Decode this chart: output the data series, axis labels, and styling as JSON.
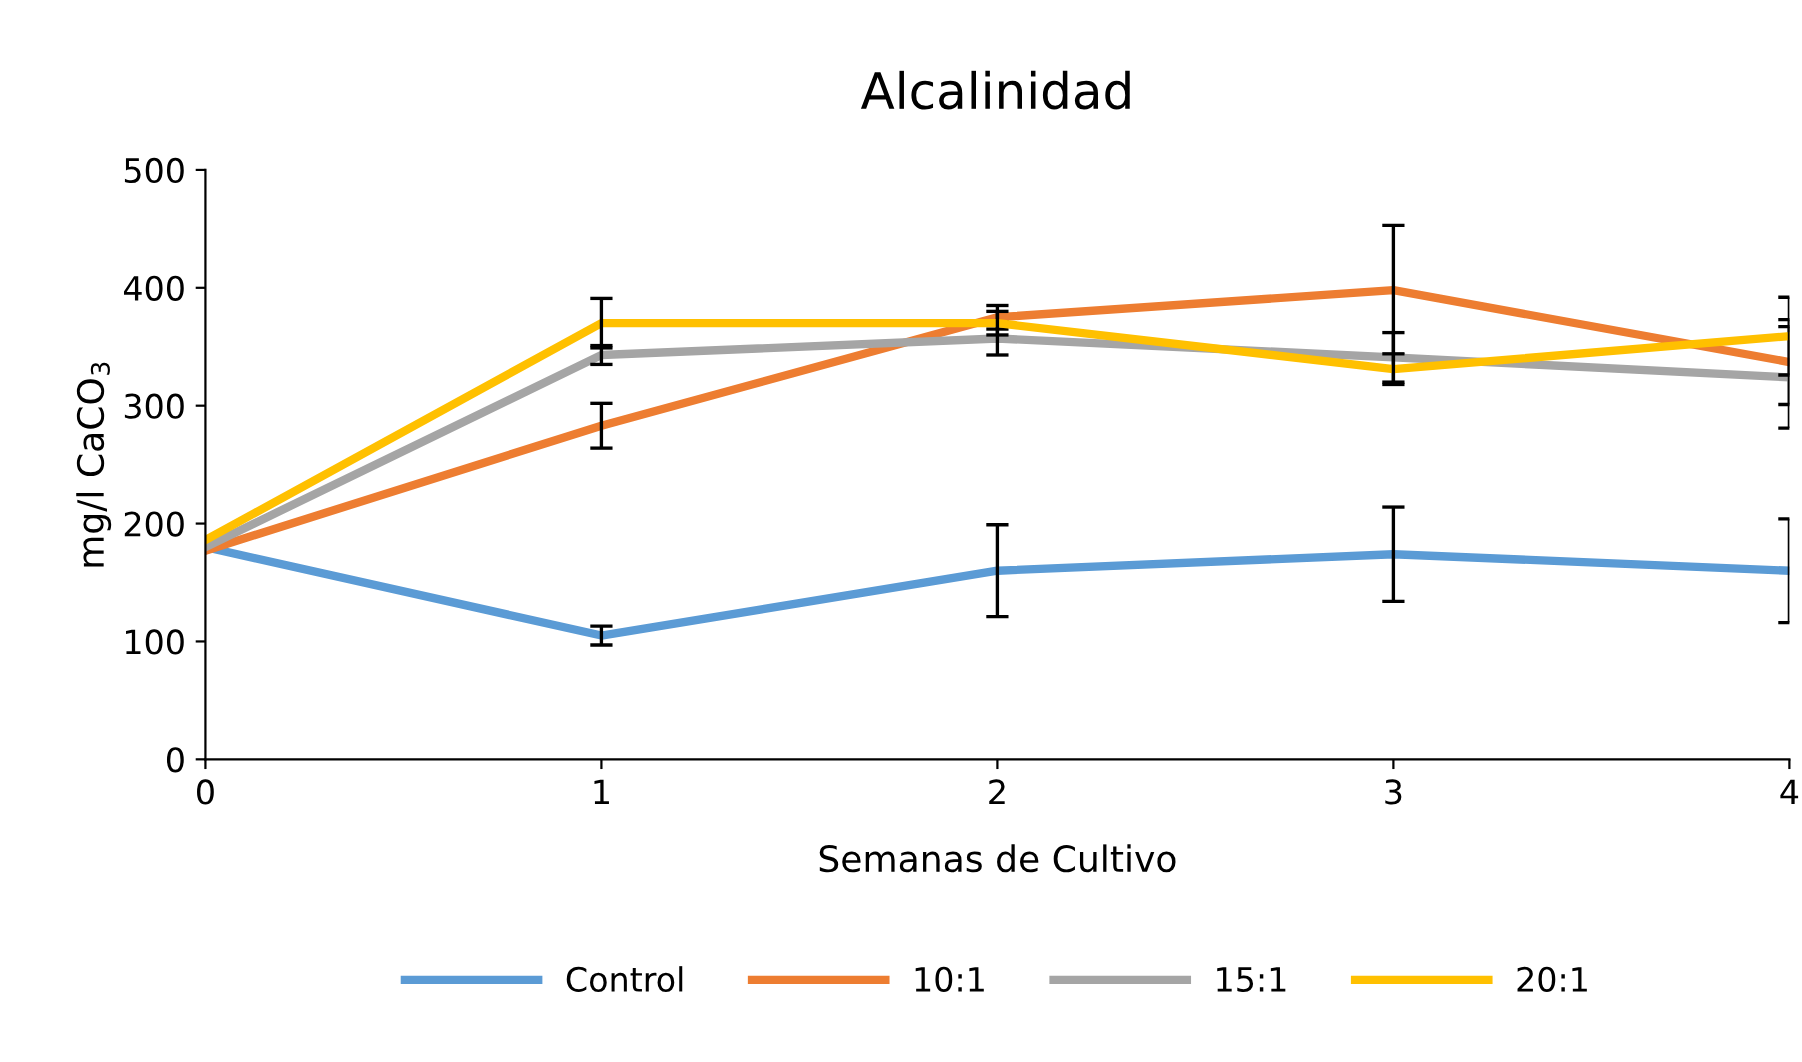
{
  "chart_data": {
    "type": "line",
    "title": "Alcalinidad",
    "xlabel": "Semanas de Cultivo",
    "ylabel": "mg/l CaCO$_{3}$",
    "x": [
      0,
      1,
      2,
      3,
      4
    ],
    "xlim": [
      0,
      4
    ],
    "xticks": [
      0,
      1,
      2,
      3,
      4
    ],
    "ylim": [
      0,
      500
    ],
    "yticks": [
      0,
      100,
      200,
      300,
      400,
      500
    ],
    "grid": false,
    "legend": "bottom",
    "marker": "none",
    "line_style": "solid",
    "series": [
      {
        "name": "Control",
        "color": "#5b9bd5",
        "values": [
          180,
          105,
          160,
          174,
          160
        ],
        "errors": [
          null,
          8,
          39,
          40,
          44
        ]
      },
      {
        "name": "10:1",
        "color": "#ed7d31",
        "values": [
          177,
          283,
          375,
          398,
          337
        ],
        "errors": [
          null,
          19,
          10,
          55,
          36
        ]
      },
      {
        "name": "15:1",
        "color": "#a5a5a5",
        "values": [
          180,
          343,
          357,
          341,
          324
        ],
        "errors": [
          null,
          8,
          14,
          21,
          43
        ]
      },
      {
        "name": "20:1",
        "color": "#ffc000",
        "values": [
          186,
          370,
          370,
          331,
          359
        ],
        "errors": [
          null,
          21,
          10,
          13,
          33
        ]
      }
    ]
  }
}
